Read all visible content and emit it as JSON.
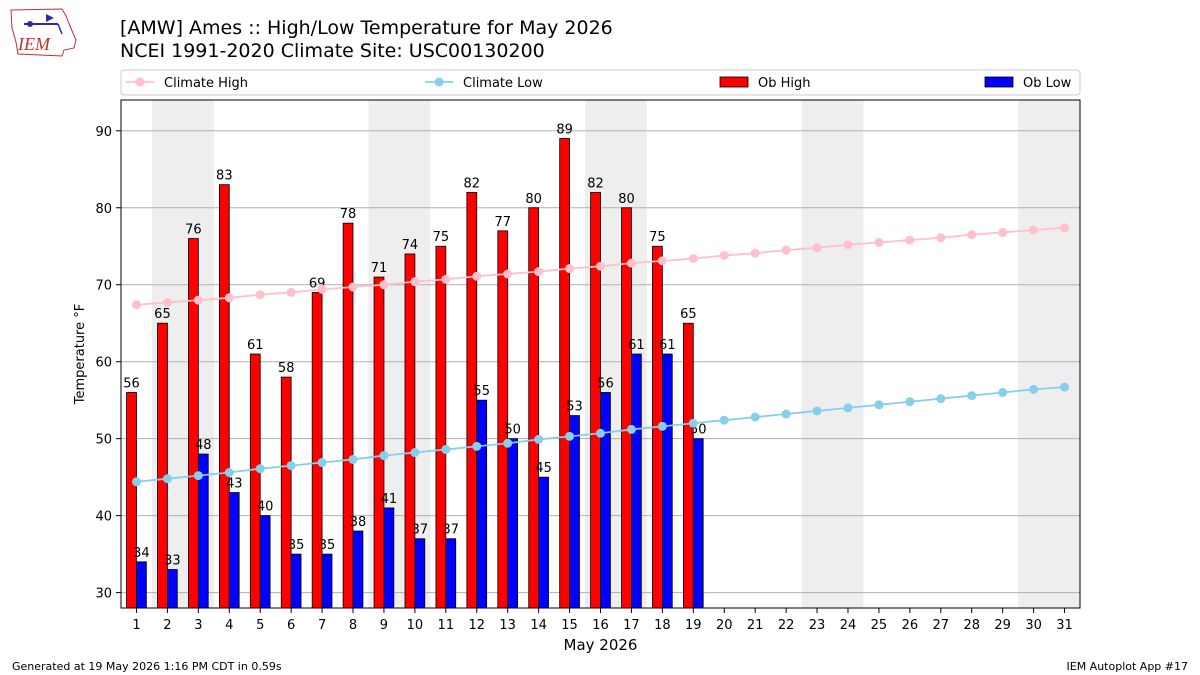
{
  "header": {
    "title_line1": "[AMW] Ames :: High/Low Temperature for May 2026",
    "title_line2": "NCEI 1991-2020 Climate Site: USC00130200",
    "logo_text": "IEM"
  },
  "footer": {
    "left": "Generated at 19 May 2026 1:16 PM CDT in 0.59s",
    "right": "IEM Autoplot App #17"
  },
  "colors": {
    "climate_high": "#ffc0cb",
    "climate_low": "#87ceeb",
    "ob_high": "#ff0000",
    "ob_low": "#0000ff",
    "weekend_shade": "#eeeeee",
    "grid": "#b0b0b0"
  },
  "chart_data": {
    "type": "bar",
    "xlabel": "May 2026",
    "ylabel": "Temperature °F",
    "xlim": [
      0.5,
      31.5
    ],
    "ylim": [
      28,
      94
    ],
    "yticks": [
      30,
      40,
      50,
      60,
      70,
      80,
      90
    ],
    "grid": "horizontal",
    "legend_placement": "top",
    "days": [
      1,
      2,
      3,
      4,
      5,
      6,
      7,
      8,
      9,
      10,
      11,
      12,
      13,
      14,
      15,
      16,
      17,
      18,
      19,
      20,
      21,
      22,
      23,
      24,
      25,
      26,
      27,
      28,
      29,
      30,
      31
    ],
    "weekend_shading": [
      [
        2,
        3
      ],
      [
        9,
        10
      ],
      [
        16,
        17
      ],
      [
        23,
        24
      ],
      [
        30,
        31
      ]
    ],
    "series": [
      {
        "name": "Climate High",
        "kind": "line",
        "values": [
          67.4,
          67.7,
          68.0,
          68.3,
          68.7,
          69.0,
          69.4,
          69.7,
          70.0,
          70.4,
          70.7,
          71.1,
          71.4,
          71.7,
          72.1,
          72.4,
          72.8,
          73.1,
          73.4,
          73.8,
          74.1,
          74.5,
          74.8,
          75.2,
          75.5,
          75.8,
          76.1,
          76.5,
          76.8,
          77.1,
          77.4
        ]
      },
      {
        "name": "Climate Low",
        "kind": "line",
        "values": [
          44.4,
          44.8,
          45.2,
          45.6,
          46.1,
          46.5,
          46.9,
          47.3,
          47.8,
          48.2,
          48.6,
          49.0,
          49.4,
          49.9,
          50.3,
          50.7,
          51.2,
          51.6,
          52.0,
          52.4,
          52.8,
          53.2,
          53.6,
          54.0,
          54.4,
          54.8,
          55.2,
          55.6,
          56.0,
          56.4,
          56.7
        ]
      },
      {
        "name": "Ob High",
        "kind": "bar",
        "values": [
          56,
          65,
          76,
          83,
          61,
          58,
          69,
          78,
          71,
          74,
          75,
          82,
          77,
          80,
          89,
          82,
          80,
          75,
          65
        ]
      },
      {
        "name": "Ob Low",
        "kind": "bar",
        "values": [
          34,
          33,
          48,
          43,
          40,
          35,
          35,
          38,
          41,
          37,
          37,
          55,
          50,
          45,
          53,
          56,
          61,
          61,
          50
        ]
      }
    ]
  }
}
